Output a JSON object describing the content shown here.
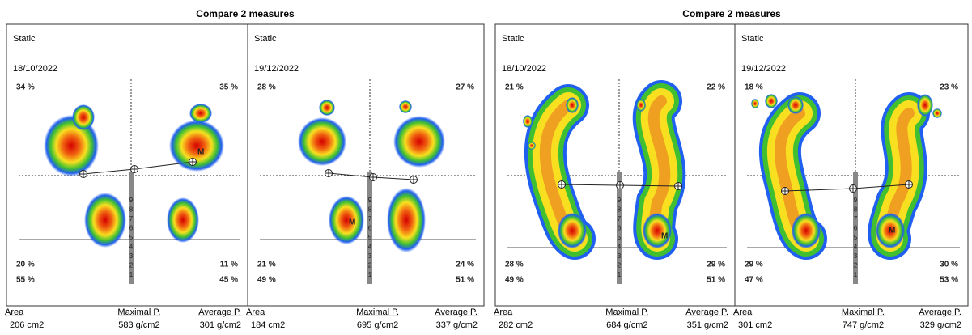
{
  "groups": [
    {
      "title": "Compare 2 measures",
      "panels": [
        {
          "mode": "Static",
          "date": "18/10/2022",
          "top_left": "34 %",
          "top_right": "35 %",
          "bottom_left": "20 %",
          "bottom_right": "11 %",
          "total_left": "55 %",
          "total_right": "45 %",
          "marker": "M",
          "stats": [
            {
              "label": "Area",
              "value": "206 cm2"
            },
            {
              "label": "Maximal P.",
              "value": "583 g/cm2"
            },
            {
              "label": "Average P.",
              "value": "301 g/cm2"
            }
          ]
        },
        {
          "mode": "Static",
          "date": "19/12/2022",
          "top_left": "28 %",
          "top_right": "27 %",
          "bottom_left": "21 %",
          "bottom_right": "24 %",
          "total_left": "49 %",
          "total_right": "51 %",
          "marker": "M",
          "stats": [
            {
              "label": "Area",
              "value": "184 cm2"
            },
            {
              "label": "Maximal P.",
              "value": "695 g/cm2"
            },
            {
              "label": "Average P.",
              "value": "337 g/cm2"
            }
          ]
        }
      ]
    },
    {
      "title": "Compare 2 measures",
      "panels": [
        {
          "mode": "Static",
          "date": "18/10/2022",
          "top_left": "21 %",
          "top_right": "22 %",
          "bottom_left": "28 %",
          "bottom_right": "29 %",
          "total_left": "49 %",
          "total_right": "51 %",
          "marker": "M",
          "stats": [
            {
              "label": "Area",
              "value": "282 cm2"
            },
            {
              "label": "Maximal P.",
              "value": "684 g/cm2"
            },
            {
              "label": "Average P.",
              "value": "351 g/cm2"
            }
          ]
        },
        {
          "mode": "Static",
          "date": "19/12/2022",
          "top_left": "18 %",
          "top_right": "23 %",
          "bottom_left": "29 %",
          "bottom_right": "30 %",
          "total_left": "47 %",
          "total_right": "53 %",
          "marker": "M",
          "stats": [
            {
              "label": "Area",
              "value": "301 cm2"
            },
            {
              "label": "Maximal P.",
              "value": "747 g/cm2"
            },
            {
              "label": "Average P.",
              "value": "329 g/cm2"
            }
          ]
        }
      ]
    }
  ],
  "ruler_labels": [
    "9",
    "8",
    "7",
    "6",
    "5",
    "4",
    "3",
    "2",
    "1"
  ]
}
